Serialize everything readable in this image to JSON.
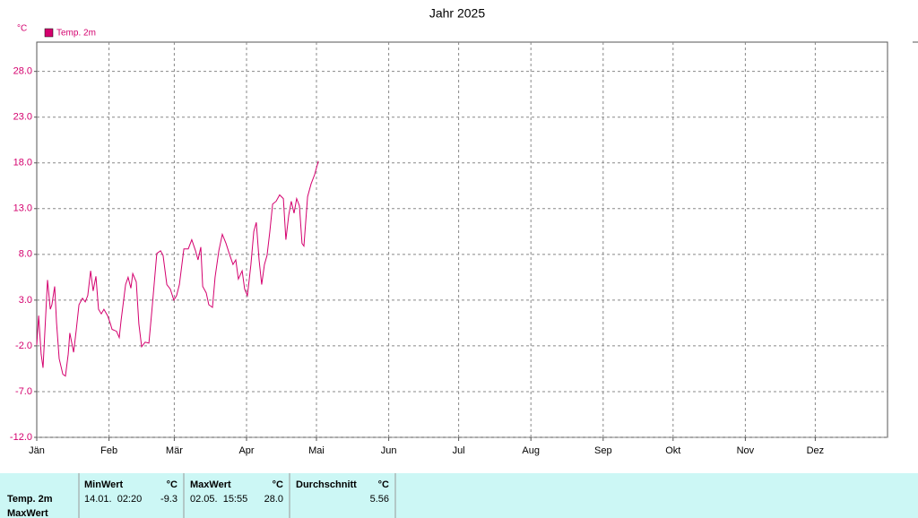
{
  "chart_data": {
    "type": "line",
    "title": "Jahr 2025",
    "y_unit": "°C",
    "x": [
      0,
      0.8,
      1.9,
      2.7,
      4.6,
      5.8,
      6.5,
      7.7,
      8.5,
      9.6,
      11.2,
      12.3,
      13.5,
      14.2,
      15.8,
      16.9,
      18.1,
      19.6,
      20.8,
      21.9,
      23.1,
      24.2,
      25.4,
      26.5,
      27.7,
      28.8,
      30.4,
      31.5,
      32.3,
      34.2,
      35.4,
      36.2,
      38.1,
      39.2,
      40.4,
      41.2,
      42.7,
      43.8,
      45,
      46.5,
      48.1,
      49.6,
      51.5,
      53.1,
      54.2,
      55.8,
      57.3,
      58.8,
      60,
      61.2,
      63.1,
      65,
      66.5,
      68.1,
      69.2,
      70.4,
      71.2,
      72.7,
      73.8,
      75.4,
      76.5,
      78.1,
      79.6,
      81.2,
      82.7,
      84.2,
      85.4,
      86.5,
      88.1,
      89.2,
      90.4,
      91.9,
      93.1,
      94.2,
      95.4,
      96.5,
      97.7,
      98.8,
      100,
      101.2,
      102.7,
      104.2,
      105.8,
      106.9,
      108.1,
      109.2,
      110.4,
      111.5,
      112.7,
      113.8,
      114.6,
      116.2,
      117.7,
      119.2,
      120.8
    ],
    "series": [
      {
        "name": "Temp. 2m",
        "color": "#d4006e",
        "values": [
          -1.9,
          1.3,
          -2.9,
          -4.4,
          5.2,
          2.0,
          2.5,
          4.5,
          0.5,
          -3.4,
          -5.1,
          -5.3,
          -2.9,
          -0.6,
          -2.7,
          -0.4,
          2.5,
          3.2,
          2.8,
          3.5,
          6.2,
          4.0,
          5.6,
          2.0,
          1.5,
          2.0,
          1.3,
          0.5,
          -0.2,
          -0.4,
          -1.1,
          0.8,
          4.7,
          5.5,
          4.3,
          5.9,
          5.0,
          0.4,
          -2.1,
          -1.6,
          -1.7,
          2.5,
          8.1,
          8.4,
          7.9,
          4.7,
          4.2,
          3.0,
          3.5,
          4.7,
          8.6,
          8.6,
          9.6,
          8.4,
          7.4,
          8.8,
          4.5,
          3.8,
          2.5,
          2.2,
          5.5,
          8.4,
          10.2,
          9.2,
          8.0,
          6.9,
          7.4,
          5.3,
          6.2,
          4.2,
          3.5,
          6.9,
          10.5,
          11.5,
          7.4,
          4.7,
          6.9,
          7.9,
          10.5,
          13.5,
          13.8,
          14.5,
          14.1,
          9.6,
          12.3,
          13.8,
          12.5,
          14.1,
          13.3,
          9.2,
          8.9,
          14.3,
          15.7,
          16.7,
          18.2
        ]
      }
    ],
    "xlim": [
      0,
      365
    ],
    "xticks": [
      {
        "value": 0,
        "label": "Jän"
      },
      {
        "value": 31,
        "label": "Feb"
      },
      {
        "value": 59,
        "label": "Mär"
      },
      {
        "value": 90,
        "label": "Apr"
      },
      {
        "value": 120,
        "label": "Mai"
      },
      {
        "value": 151,
        "label": "Jun"
      },
      {
        "value": 181,
        "label": "Jul"
      },
      {
        "value": 212,
        "label": "Aug"
      },
      {
        "value": 243,
        "label": "Sep"
      },
      {
        "value": 273,
        "label": "Okt"
      },
      {
        "value": 304,
        "label": "Nov"
      },
      {
        "value": 334,
        "label": "Dez"
      }
    ],
    "ylim": [
      -12,
      31.2
    ],
    "yticks": [
      {
        "value": -12,
        "label": "-12.0"
      },
      {
        "value": -7,
        "label": "-7.0"
      },
      {
        "value": -2,
        "label": "-2.0"
      },
      {
        "value": 3,
        "label": "3.0"
      },
      {
        "value": 8,
        "label": "8.0"
      },
      {
        "value": 13,
        "label": "13.0"
      },
      {
        "value": 18,
        "label": "18.0"
      },
      {
        "value": 23,
        "label": "23.0"
      },
      {
        "value": 28,
        "label": "28.0"
      }
    ],
    "grid": true,
    "legend": "top-left"
  },
  "stats_table": {
    "row_label": "Temp. 2m",
    "row_label2": "MaxWert",
    "columns": [
      {
        "header": "MinWert",
        "unit": "°C",
        "time": "14.01.  02:20",
        "value": "-9.3"
      },
      {
        "header": "MaxWert",
        "unit": "°C",
        "time": "02.05.  15:55",
        "value": "28.0"
      },
      {
        "header": "Durchschnitt",
        "unit": "°C",
        "time": "",
        "value": "5.56"
      }
    ]
  }
}
